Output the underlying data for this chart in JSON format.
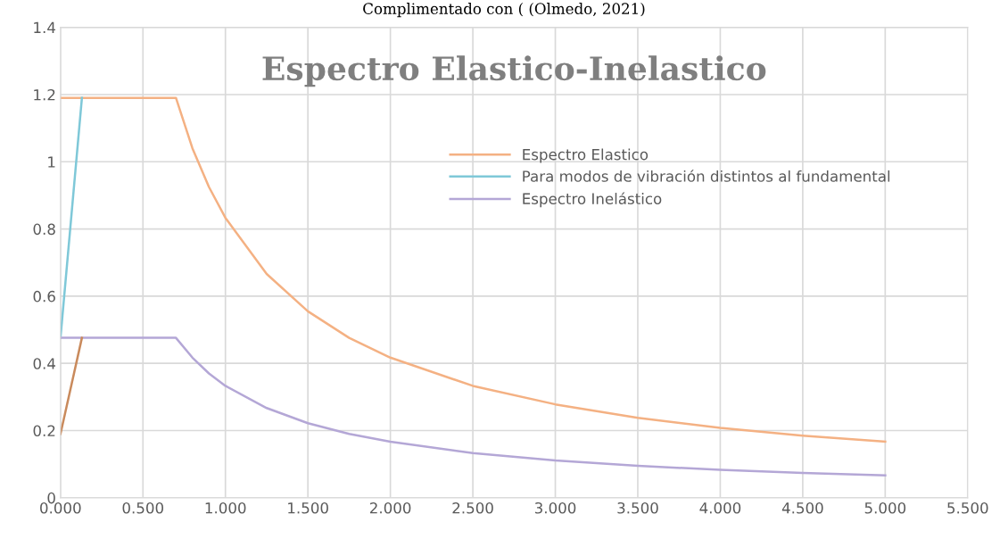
{
  "chart_data": {
    "type": "line",
    "title": "Espectro Elastico-Inelastico",
    "annotations": [
      "Complimentado con ( (Olmedo, 2021)"
    ],
    "series": [
      {
        "name": "Espectro Elastico",
        "color": "#f4b183",
        "x": [
          0,
          0.7,
          0.8,
          0.9,
          1.0,
          1.25,
          1.5,
          1.75,
          2.0,
          2.5,
          3.0,
          3.5,
          4.0,
          4.5,
          5.0
        ],
        "values": [
          1.19,
          1.19,
          1.04,
          0.925,
          0.833,
          0.666,
          0.555,
          0.476,
          0.417,
          0.333,
          0.278,
          0.238,
          0.208,
          0.185,
          0.167
        ]
      },
      {
        "name": "Para modos de vibración distintos al fundamental",
        "color": "#7fc8d8",
        "x": [
          0,
          0.13
        ],
        "values": [
          0.476,
          1.19
        ]
      },
      {
        "name": "Espectro Inelástico",
        "color": "#b4a7d6",
        "x": [
          0,
          0.7,
          0.8,
          0.9,
          1.0,
          1.25,
          1.5,
          1.75,
          2.0,
          2.5,
          3.0,
          3.5,
          4.0,
          4.5,
          5.0
        ],
        "values": [
          0.476,
          0.476,
          0.417,
          0.37,
          0.333,
          0.267,
          0.222,
          0.19,
          0.167,
          0.133,
          0.111,
          0.095,
          0.083,
          0.074,
          0.067
        ]
      },
      {
        "color": "#c98a5c",
        "x": [
          0,
          0.13
        ],
        "values": [
          0.19,
          0.476
        ]
      }
    ],
    "xlim": [
      0,
      5.5
    ],
    "xticks": [
      {
        "value": 0,
        "label": "0.000"
      },
      {
        "value": 0.5,
        "label": "0.500"
      },
      {
        "value": 1,
        "label": "1.000"
      },
      {
        "value": 1.5,
        "label": "1.500"
      },
      {
        "value": 2,
        "label": "2.000"
      },
      {
        "value": 2.5,
        "label": "2.500"
      },
      {
        "value": 3,
        "label": "3.000"
      },
      {
        "value": 3.5,
        "label": "3.500"
      },
      {
        "value": 4,
        "label": "4.000"
      },
      {
        "value": 4.5,
        "label": "4.500"
      },
      {
        "value": 5,
        "label": "5.000"
      },
      {
        "value": 5.5,
        "label": "5.500"
      }
    ],
    "ylim": [
      0,
      1.4
    ],
    "yticks": [
      0,
      0.2,
      0.4,
      0.6,
      0.8,
      1,
      1.2,
      1.4
    ],
    "grid": true,
    "legend": "right",
    "marker": "none",
    "line_style": "solid"
  }
}
